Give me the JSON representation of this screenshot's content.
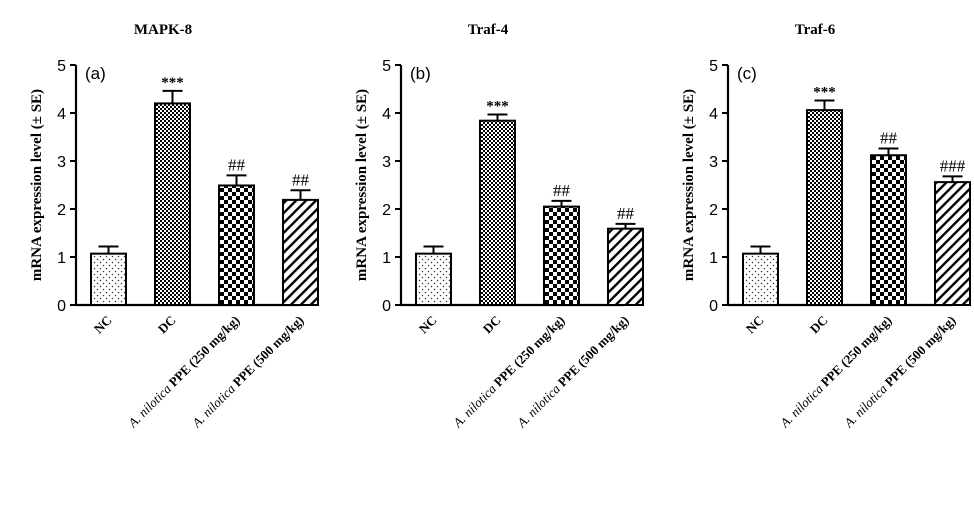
{
  "chart_data": [
    {
      "type": "bar",
      "title": "MAPK-8",
      "panel_label": "(a)",
      "ylabel": "mRNA expression level (± SE)",
      "ylim": [
        0,
        5
      ],
      "yticks": [
        "0",
        "1",
        "2",
        "3",
        "4",
        "5"
      ],
      "categories": [
        "NC",
        "DC",
        "A. nilotica PPE (250 mg/kg)",
        "A. nilotica PPE (500 mg/kg)"
      ],
      "values": [
        1.07,
        4.2,
        2.49,
        2.19
      ],
      "errors": [
        0.15,
        0.26,
        0.21,
        0.2
      ],
      "annotations": [
        "",
        "***",
        "##",
        "##"
      ]
    },
    {
      "type": "bar",
      "title": "Traf-4",
      "panel_label": "(b)",
      "ylabel": "mRNA expression level (± SE)",
      "ylim": [
        0,
        5
      ],
      "yticks": [
        "0",
        "1",
        "2",
        "3",
        "4",
        "5"
      ],
      "categories": [
        "NC",
        "DC",
        "A. nilotica PPE (250 mg/kg)",
        "A. nilotica PPE (500 mg/kg)"
      ],
      "values": [
        1.07,
        3.84,
        2.05,
        1.59
      ],
      "errors": [
        0.15,
        0.13,
        0.12,
        0.1
      ],
      "annotations": [
        "",
        "***",
        "##",
        "##"
      ]
    },
    {
      "type": "bar",
      "title": "Traf-6",
      "panel_label": "(c)",
      "ylabel": "mRNA expression level (± SE)",
      "ylim": [
        0,
        5
      ],
      "yticks": [
        "0",
        "1",
        "2",
        "3",
        "4",
        "5"
      ],
      "categories": [
        "NC",
        "DC",
        "A. nilotica PPE (250 mg/kg)",
        "A. nilotica PPE (500 mg/kg)"
      ],
      "values": [
        1.07,
        4.06,
        3.12,
        2.56
      ],
      "errors": [
        0.15,
        0.2,
        0.14,
        0.12
      ],
      "annotations": [
        "",
        "***",
        "##",
        "###"
      ]
    }
  ],
  "category_label_parts": [
    {
      "italic": "",
      "rest": "NC"
    },
    {
      "italic": "",
      "rest": "DC"
    },
    {
      "italic": "A. nilotica",
      "rest": " PPE (250 mg/kg)"
    },
    {
      "italic": "A. nilotica",
      "rest": " PPE (500 mg/kg)"
    }
  ],
  "bar_patterns": [
    "dots",
    "checker-fine",
    "checker-coarse",
    "diagonal"
  ],
  "colors": {
    "ink": "#000000",
    "background": "#ffffff"
  }
}
